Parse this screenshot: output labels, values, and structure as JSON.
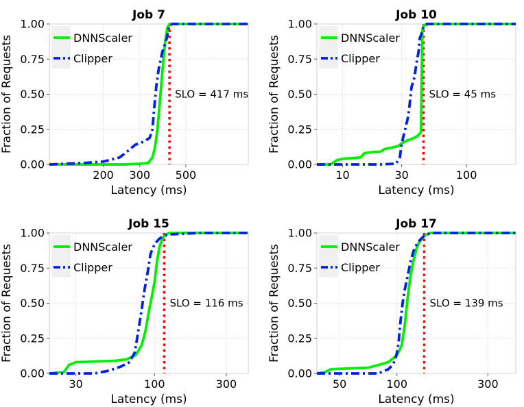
{
  "chart_data": [
    {
      "type": "line",
      "title": "Job 7",
      "xlabel": "Latency (ms)",
      "ylabel": "Fraction of Requests",
      "x_ticks": [
        200,
        300,
        500
      ],
      "y_ticks": [
        "0.00",
        "0.25",
        "0.50",
        "0.75",
        "1.00"
      ],
      "xlim": [
        110,
        1000
      ],
      "ylim": [
        0,
        1
      ],
      "x_scale": "log",
      "grid": true,
      "legend": "top-left",
      "slo_value": 417,
      "slo_label": "SLO = 417 ms",
      "series": [
        {
          "name": "DNNScaler",
          "color": "#00ee00",
          "style": "solid",
          "x": [
            110,
            150,
            200,
            250,
            300,
            330,
            345,
            355,
            365,
            375,
            385,
            393,
            400,
            407,
            417,
            450,
            600,
            1000
          ],
          "y": [
            0.0,
            0.0,
            0.0,
            0.0,
            0.005,
            0.01,
            0.05,
            0.12,
            0.25,
            0.45,
            0.65,
            0.8,
            0.9,
            0.97,
            1.0,
            1.0,
            1.0,
            1.0
          ]
        },
        {
          "name": "Clipper",
          "color": "#0022dd",
          "style": "dashdot",
          "x": [
            110,
            160,
            200,
            240,
            265,
            285,
            300,
            320,
            335,
            345,
            352,
            360,
            370,
            385,
            395,
            405,
            415,
            430,
            600,
            1000
          ],
          "y": [
            0.0,
            0.01,
            0.02,
            0.05,
            0.1,
            0.14,
            0.15,
            0.17,
            0.19,
            0.25,
            0.4,
            0.55,
            0.68,
            0.8,
            0.85,
            0.9,
            0.98,
            1.0,
            1.0,
            1.0
          ]
        }
      ]
    },
    {
      "type": "line",
      "title": "Job 10",
      "xlabel": "Latency (ms)",
      "ylabel": "Fraction of Requests",
      "x_ticks": [
        10,
        30,
        100
      ],
      "y_ticks": [
        "0.00",
        "0.25",
        "0.50",
        "0.75",
        "1.00"
      ],
      "xlim": [
        6.2,
        250
      ],
      "ylim": [
        0,
        1
      ],
      "x_scale": "log",
      "grid": true,
      "legend": "top-left",
      "slo_value": 45,
      "slo_label": "SLO = 45 ms",
      "series": [
        {
          "name": "DNNScaler",
          "color": "#00ee00",
          "style": "solid",
          "x": [
            6.2,
            8.0,
            9.0,
            10,
            12,
            14,
            15,
            18,
            20,
            22,
            25,
            28,
            30,
            33,
            36,
            40,
            42,
            43,
            44,
            45,
            50,
            100,
            250
          ],
          "y": [
            0.0,
            0.0,
            0.03,
            0.04,
            0.045,
            0.05,
            0.08,
            0.09,
            0.09,
            0.11,
            0.12,
            0.13,
            0.15,
            0.17,
            0.18,
            0.2,
            0.22,
            0.23,
            0.95,
            0.99,
            1.0,
            1.0,
            1.0
          ]
        },
        {
          "name": "Clipper",
          "color": "#0022dd",
          "style": "dashdot",
          "x": [
            6.2,
            10,
            20,
            27,
            29,
            30,
            32,
            34,
            36,
            38,
            40,
            41,
            42,
            43,
            44,
            45,
            48,
            100,
            250
          ],
          "y": [
            0.0,
            0.0,
            0.0,
            0.005,
            0.05,
            0.15,
            0.25,
            0.35,
            0.55,
            0.62,
            0.75,
            0.8,
            0.9,
            0.92,
            0.95,
            0.98,
            1.0,
            1.0,
            1.0
          ]
        }
      ]
    },
    {
      "type": "line",
      "title": "Job 15",
      "xlabel": "Latency (ms)",
      "ylabel": "Fraction of Requests",
      "x_ticks": [
        30,
        100,
        300
      ],
      "y_ticks": [
        "0.00",
        "0.25",
        "0.50",
        "0.75",
        "1.00"
      ],
      "xlim": [
        20,
        420
      ],
      "ylim": [
        0,
        1
      ],
      "x_scale": "log",
      "grid": true,
      "legend": "top-left",
      "slo_value": 116,
      "slo_label": "SLO = 116 ms",
      "series": [
        {
          "name": "DNNScaler",
          "color": "#00ee00",
          "style": "solid",
          "x": [
            20,
            25,
            27,
            30,
            40,
            55,
            65,
            75,
            82,
            87,
            92,
            96,
            100,
            104,
            108,
            112,
            116,
            125,
            200,
            420
          ],
          "y": [
            0.0,
            0.01,
            0.06,
            0.08,
            0.085,
            0.09,
            0.1,
            0.13,
            0.2,
            0.3,
            0.45,
            0.55,
            0.65,
            0.8,
            0.9,
            0.95,
            0.98,
            1.0,
            1.0,
            1.0
          ]
        },
        {
          "name": "Clipper",
          "color": "#0022dd",
          "style": "dashdot",
          "x": [
            20,
            40,
            50,
            60,
            68,
            74,
            78,
            82,
            86,
            90,
            94,
            100,
            108,
            116,
            125,
            200,
            420
          ],
          "y": [
            0.0,
            0.0,
            0.02,
            0.05,
            0.08,
            0.15,
            0.3,
            0.45,
            0.6,
            0.72,
            0.85,
            0.92,
            0.96,
            0.98,
            0.99,
            1.0,
            1.0
          ]
        }
      ]
    },
    {
      "type": "line",
      "title": "Job 17",
      "xlabel": "Latency (ms)",
      "ylabel": "Fraction of Requests",
      "x_ticks": [
        50,
        100,
        300
      ],
      "y_ticks": [
        "0.00",
        "0.25",
        "0.50",
        "0.75",
        "1.00"
      ],
      "xlim": [
        38,
        420
      ],
      "ylim": [
        0,
        1
      ],
      "x_scale": "log",
      "grid": true,
      "legend": "top-left",
      "slo_value": 139,
      "slo_label": "SLO = 139 ms",
      "series": [
        {
          "name": "DNNScaler",
          "color": "#00ee00",
          "style": "solid",
          "x": [
            38,
            42,
            45,
            55,
            70,
            80,
            90,
            100,
            106,
            110,
            114,
            118,
            122,
            126,
            130,
            139,
            150,
            200,
            420
          ],
          "y": [
            0.0,
            0.01,
            0.03,
            0.035,
            0.04,
            0.06,
            0.08,
            0.13,
            0.2,
            0.35,
            0.55,
            0.7,
            0.8,
            0.88,
            0.93,
            0.98,
            1.0,
            1.0,
            1.0
          ]
        },
        {
          "name": "Clipper",
          "color": "#0022dd",
          "style": "dashdot",
          "x": [
            38,
            80,
            90,
            95,
            98,
            100,
            102,
            104,
            107,
            110,
            114,
            118,
            122,
            127,
            132,
            139,
            150,
            200,
            420
          ],
          "y": [
            0.0,
            0.0,
            0.03,
            0.06,
            0.1,
            0.15,
            0.22,
            0.35,
            0.5,
            0.6,
            0.7,
            0.8,
            0.87,
            0.92,
            0.95,
            0.98,
            1.0,
            1.0,
            1.0
          ]
        }
      ]
    }
  ]
}
